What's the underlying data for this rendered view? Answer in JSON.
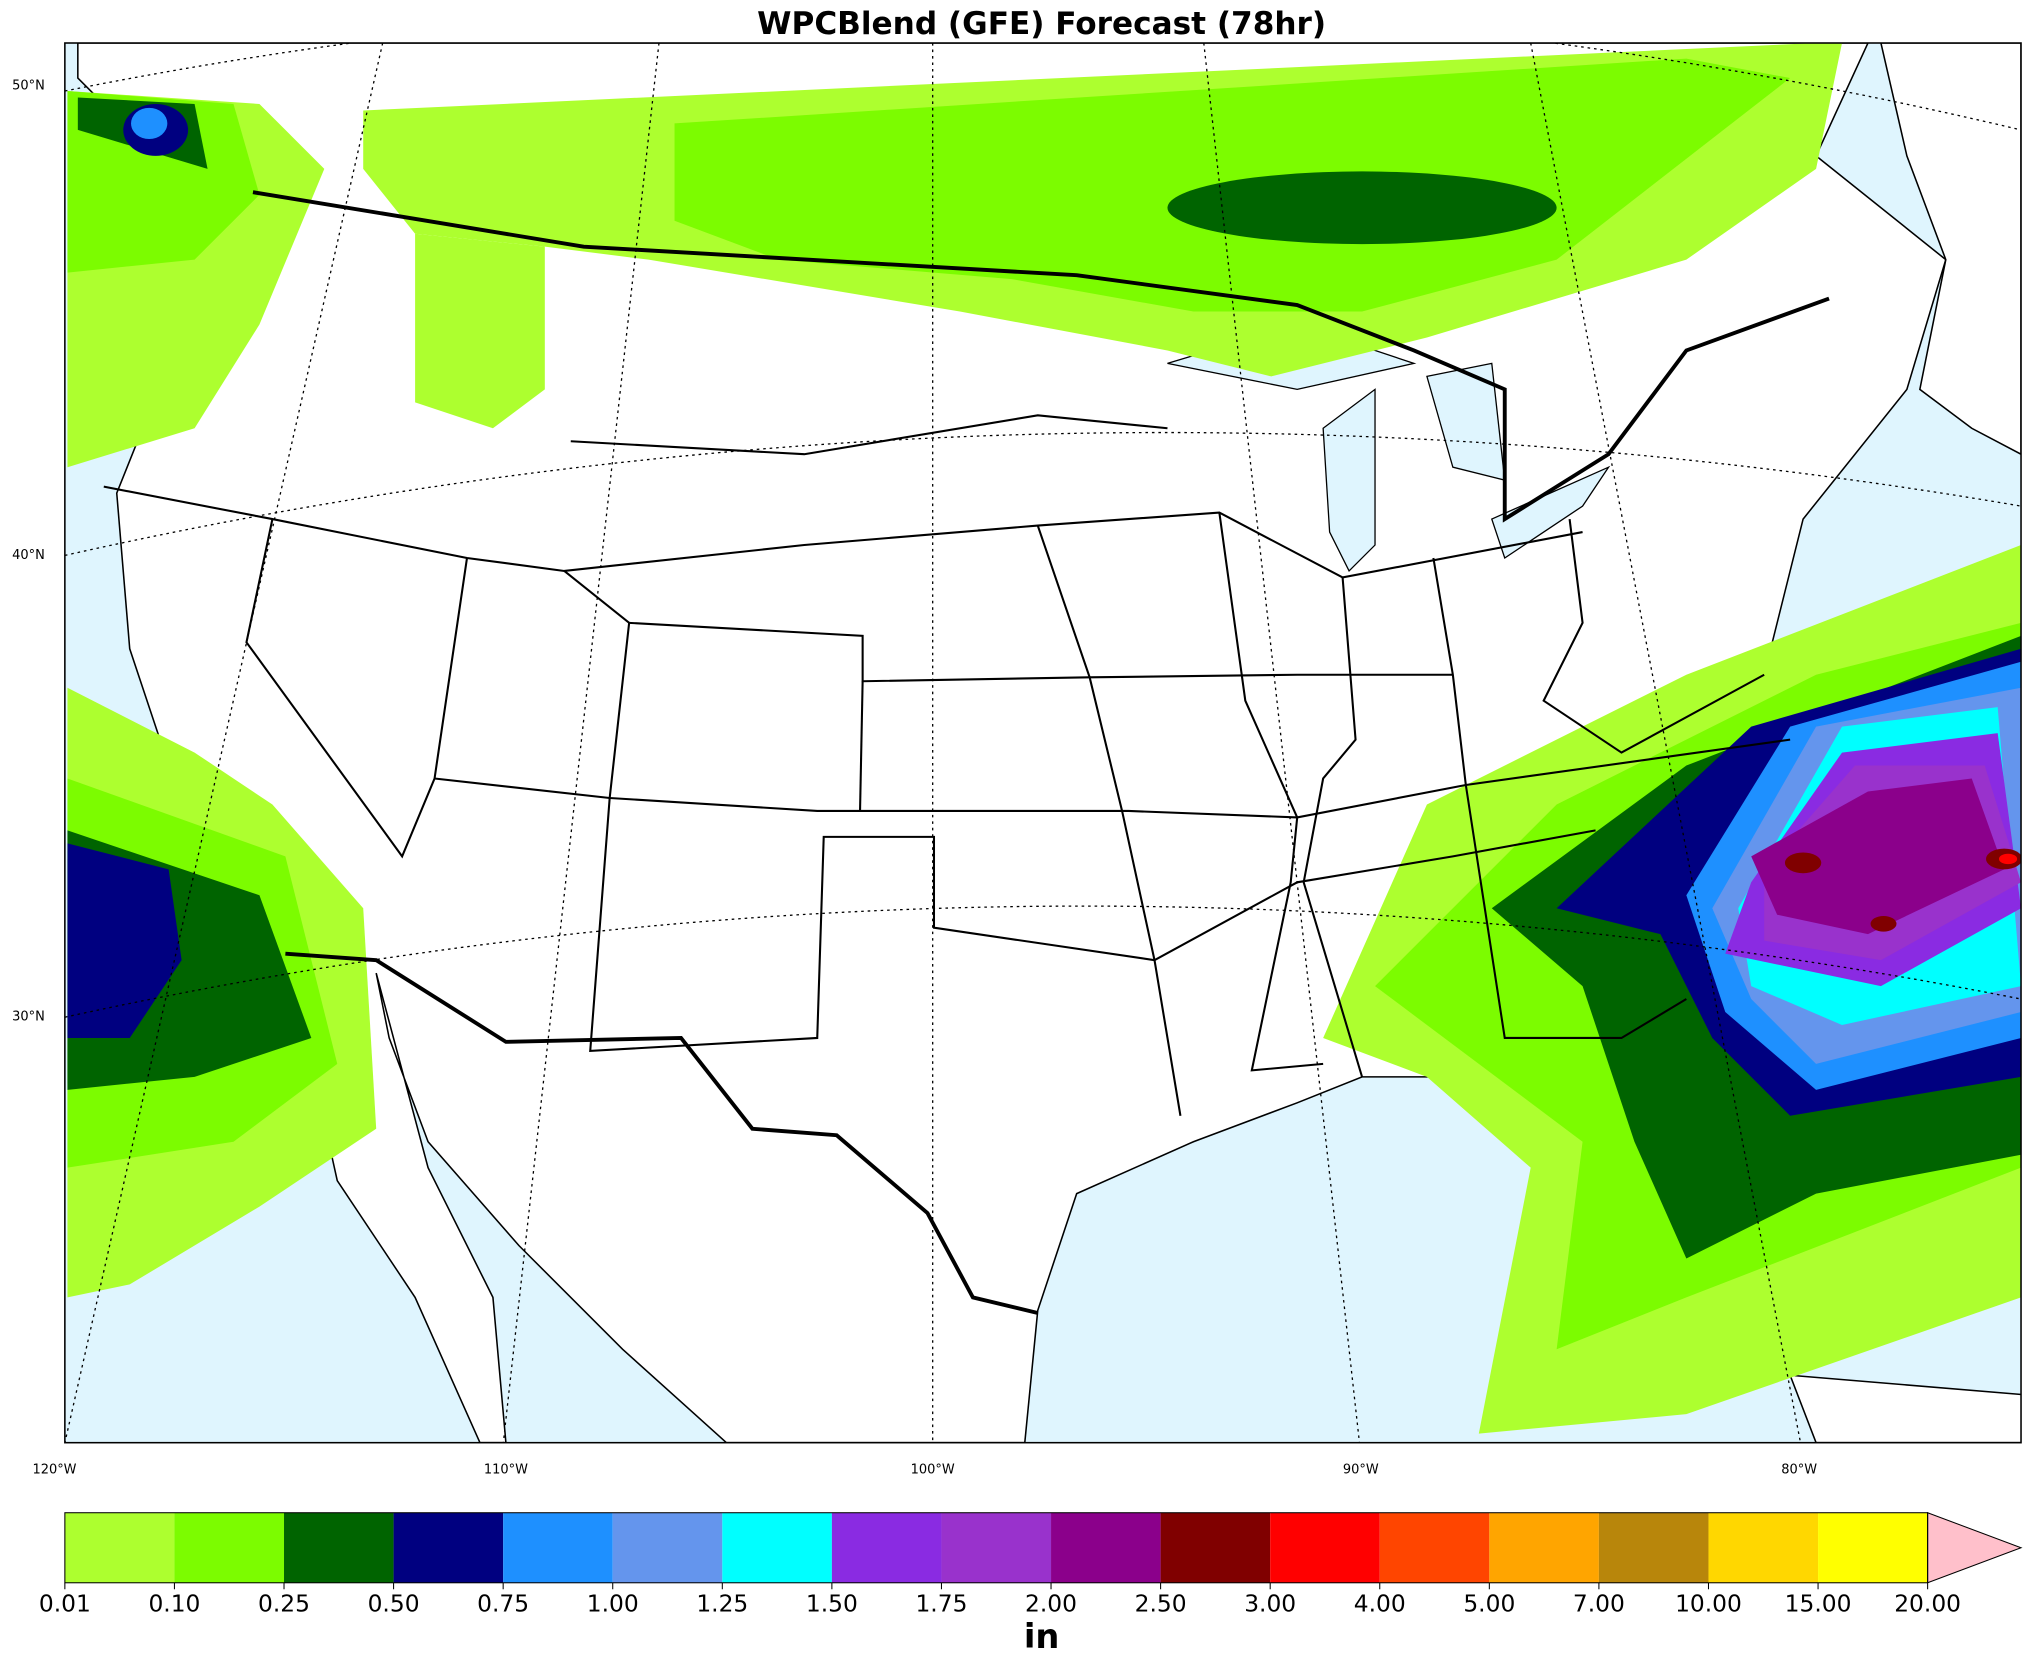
{
  "title": "WPCBlend (GFE) Forecast (78hr)",
  "map": {
    "lat_labels": [
      "50°N",
      "40°N",
      "30°N"
    ],
    "lon_labels": [
      "120°W",
      "110°W",
      "100°W",
      "90°W",
      "80°W"
    ],
    "ocean_color": "#dff5fe",
    "land_color": "#ffffff"
  },
  "colorbar": {
    "boundaries": [
      {
        "value": 0.01,
        "label": "0.01"
      },
      {
        "value": 0.1,
        "label": "0.10"
      },
      {
        "value": 0.25,
        "label": "0.25"
      },
      {
        "value": 0.5,
        "label": "0.50"
      },
      {
        "value": 0.75,
        "label": "0.75"
      },
      {
        "value": 1,
        "label": "1.00"
      },
      {
        "value": 1.25,
        "label": "1.25"
      },
      {
        "value": 1.5,
        "label": "1.50"
      },
      {
        "value": 1.75,
        "label": "1.75"
      },
      {
        "value": 2,
        "label": "2.00"
      },
      {
        "value": 2.5,
        "label": "2.50"
      },
      {
        "value": 3,
        "label": "3.00"
      },
      {
        "value": 4,
        "label": "4.00"
      },
      {
        "value": 5,
        "label": "5.00"
      },
      {
        "value": 7,
        "label": "7.00"
      },
      {
        "value": 10,
        "label": "10.00"
      },
      {
        "value": 15,
        "label": "15.00"
      },
      {
        "value": 20,
        "label": "20.00"
      }
    ],
    "colors": [
      "#adff2f",
      "#7cfc00",
      "#006400",
      "#000080",
      "#1e90ff",
      "#6495ed",
      "#00ffff",
      "#8a2be2",
      "#9932cc",
      "#8b008b",
      "#800000",
      "#ff0000",
      "#ff4500",
      "#ffa500",
      "#b8860b",
      "#ffd700",
      "#ffff00"
    ],
    "extend_color": "#ffc0cb",
    "unit": "in"
  }
}
